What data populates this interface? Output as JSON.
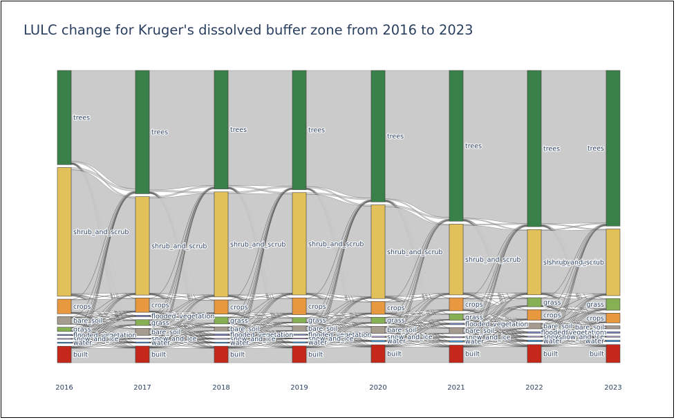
{
  "title": "LULC change for Kruger's dissolved buffer zone from 2016 to 2023",
  "chart_data": {
    "type": "sankey",
    "title": "LULC change for Kruger's dissolved buffer zone from 2016 to 2023",
    "years": [
      "2016",
      "2017",
      "2018",
      "2019",
      "2020",
      "2021",
      "2022",
      "2023"
    ],
    "classes": {
      "trees": "#3a8049",
      "shrub_and_scrub": "#e2c15a",
      "crops": "#e8983e",
      "bare_soil": "#a59b8f",
      "grass": "#87b054",
      "flooded_vegetation": "#7a87c6",
      "snow_and_ice": "#b39fe1",
      "water": "#419bdf",
      "built": "#c4281b"
    },
    "nodes": [
      [
        {
          "name": "trees",
          "value": 24.5
        },
        {
          "name": "shrub_and_scrub",
          "value": 33.5
        },
        {
          "name": "crops",
          "value": 3.8
        },
        {
          "name": "bare_soil",
          "value": 2.0
        },
        {
          "name": "grass",
          "value": 1.1
        },
        {
          "name": "flooded_vegetation",
          "value": 0.3
        },
        {
          "name": "snow_and_ice",
          "value": 0.2
        },
        {
          "name": "water",
          "value": 0.3
        },
        {
          "name": "built",
          "value": 4.3
        }
      ],
      [
        {
          "name": "trees",
          "value": 31.8
        },
        {
          "name": "shrub_and_scrub",
          "value": 25.4
        },
        {
          "name": "crops",
          "value": 3.7
        },
        {
          "name": "flooded_vegetation",
          "value": 0.4
        },
        {
          "name": "grass",
          "value": 1.5
        },
        {
          "name": "bare_soil",
          "value": 1.8
        },
        {
          "name": "snow_and_ice",
          "value": 0.2
        },
        {
          "name": "water",
          "value": 0.3
        },
        {
          "name": "built",
          "value": 4.3
        }
      ],
      [
        {
          "name": "trees",
          "value": 30.8
        },
        {
          "name": "shrub_and_scrub",
          "value": 27.3
        },
        {
          "name": "crops",
          "value": 3.7
        },
        {
          "name": "grass",
          "value": 1.8
        },
        {
          "name": "bare_soil",
          "value": 1.1
        },
        {
          "name": "flooded_vegetation",
          "value": 0.4
        },
        {
          "name": "snow_and_ice",
          "value": 0.2
        },
        {
          "name": "water",
          "value": 0.3
        },
        {
          "name": "built",
          "value": 4.3
        }
      ],
      [
        {
          "name": "trees",
          "value": 31.2
        },
        {
          "name": "shrub_and_scrub",
          "value": 26.8
        },
        {
          "name": "crops",
          "value": 4.4
        },
        {
          "name": "grass",
          "value": 1.4
        },
        {
          "name": "bare_soil",
          "value": 1.4
        },
        {
          "name": "flooded_vegetation",
          "value": 0.3
        },
        {
          "name": "snow_and_ice",
          "value": 0.2
        },
        {
          "name": "water",
          "value": 0.3
        },
        {
          "name": "built",
          "value": 4.4
        }
      ],
      [
        {
          "name": "trees",
          "value": 33.8
        },
        {
          "name": "shrub_and_scrub",
          "value": 24.1
        },
        {
          "name": "crops",
          "value": 3.3
        },
        {
          "name": "grass",
          "value": 1.6
        },
        {
          "name": "bare_soil",
          "value": 1.8
        },
        {
          "name": "snow_and_ice",
          "value": 0.3
        },
        {
          "name": "water",
          "value": 0.4
        },
        {
          "name": "built",
          "value": 4.6
        }
      ],
      [
        {
          "name": "trees",
          "value": 39.4
        },
        {
          "name": "shrub_and_scrub",
          "value": 18.5
        },
        {
          "name": "crops",
          "value": 3.4
        },
        {
          "name": "grass",
          "value": 1.7
        },
        {
          "name": "flooded_vegetation",
          "value": 0.4
        },
        {
          "name": "bare_soil",
          "value": 1.6
        },
        {
          "name": "snow_and_ice",
          "value": 0.3
        },
        {
          "name": "water",
          "value": 0.4
        },
        {
          "name": "built",
          "value": 4.6
        }
      ],
      [
        {
          "name": "trees",
          "value": 41.4
        },
        {
          "name": "shrub_and_scrub",
          "value": 17.3
        },
        {
          "name": "grass",
          "value": 2.4
        },
        {
          "name": "crops",
          "value": 2.8
        },
        {
          "name": "bare_soil",
          "value": 1.5
        },
        {
          "name": "flooded_vegetation",
          "value": 0.4
        },
        {
          "name": "snow_and_ice",
          "value": 0.3
        },
        {
          "name": "water",
          "value": 0.4
        },
        {
          "name": "built",
          "value": 4.8
        }
      ],
      [
        {
          "name": "trees",
          "value": 41.3
        },
        {
          "name": "shrub_and_scrub",
          "value": 17.7
        },
        {
          "name": "grass",
          "value": 3.1
        },
        {
          "name": "crops",
          "value": 2.6
        },
        {
          "name": "bare_soil",
          "value": 0.8
        },
        {
          "name": "flooded_vegetation",
          "value": 0.4
        },
        {
          "name": "snow_and_ice",
          "value": 0.3
        },
        {
          "name": "water",
          "value": 0.4
        },
        {
          "name": "built",
          "value": 4.8
        }
      ]
    ]
  }
}
